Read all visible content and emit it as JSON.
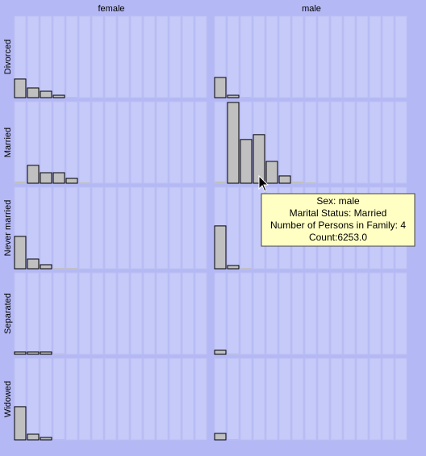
{
  "chart_data": {
    "type": "bar",
    "columns": [
      "female",
      "male"
    ],
    "rows": [
      "Divorced",
      "Married",
      "Never married",
      "Separated",
      "Widowed"
    ],
    "color": "#c0c0c0",
    "ylim": [
      0,
      10500
    ],
    "values": [
      [
        [
          2400,
          1250,
          830,
          310,
          100,
          0,
          0,
          0,
          0,
          0,
          0,
          0,
          0,
          0,
          0
        ],
        [
          2600,
          310,
          100,
          0,
          0,
          0,
          0,
          0,
          0,
          0,
          0,
          0,
          0,
          0,
          0
        ]
      ],
      [
        [
          200,
          2300,
          1350,
          1350,
          620,
          100,
          0,
          0,
          0,
          0,
          0,
          0,
          0,
          0,
          0
        ],
        [
          200,
          10400,
          5630,
          6253,
          2810,
          940,
          200,
          100,
          0,
          0,
          0,
          0,
          0,
          0,
          0
        ]
      ],
      [
        [
          4170,
          1250,
          520,
          100,
          100,
          0,
          0,
          0,
          0,
          0,
          0,
          0,
          0,
          0,
          0
        ],
        [
          5520,
          420,
          100,
          0,
          0,
          0,
          0,
          0,
          0,
          0,
          0,
          0,
          0,
          0,
          0
        ]
      ],
      [
        [
          310,
          310,
          310,
          100,
          0,
          0,
          0,
          0,
          0,
          0,
          0,
          0,
          0,
          0,
          0
        ],
        [
          520,
          100,
          0,
          0,
          0,
          0,
          0,
          0,
          0,
          0,
          0,
          0,
          0,
          0,
          0
        ]
      ],
      [
        [
          4270,
          730,
          310,
          100,
          0,
          0,
          0,
          0,
          0,
          0,
          0,
          0,
          0,
          0,
          0
        ],
        [
          830,
          100,
          0,
          0,
          0,
          0,
          0,
          0,
          0,
          0,
          0,
          0,
          0,
          0,
          0
        ]
      ]
    ],
    "tooltip": [
      "Sex: male",
      "Marital Status: Married",
      "Number of Persons in Family: 4",
      "Count:6253.0"
    ]
  }
}
